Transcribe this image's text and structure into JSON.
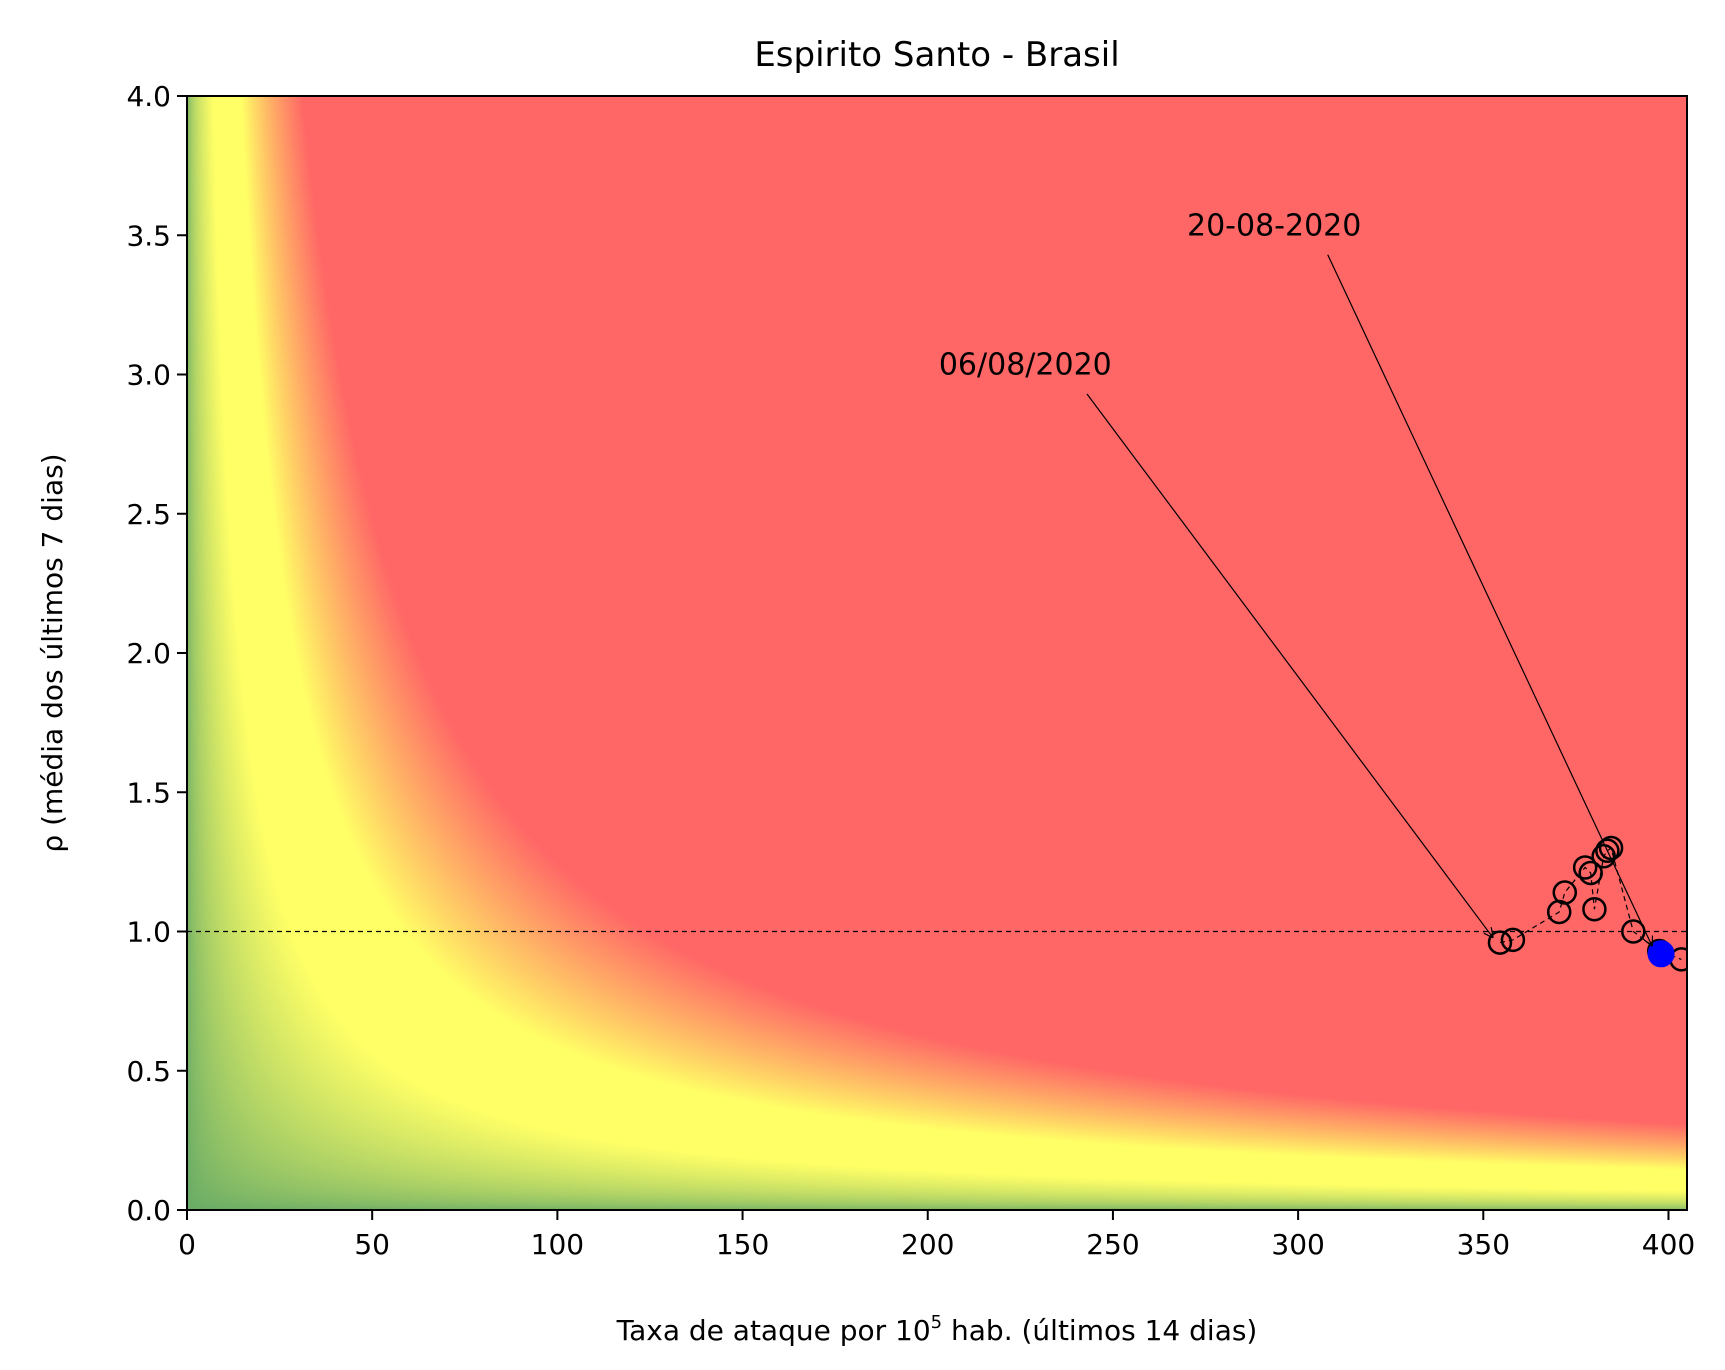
{
  "chart_data": {
    "type": "scatter",
    "title": "Espirito Santo - Brasil",
    "xlabel": {
      "prefix": "Taxa de ataque por 10",
      "sup": "5",
      "suffix": " hab. (últimos 14 dias)"
    },
    "ylabel": "ρ (média dos últimos 7 dias)",
    "xlim": [
      0,
      405
    ],
    "ylim": [
      0,
      4.0
    ],
    "xticks": [
      0,
      50,
      100,
      150,
      200,
      250,
      300,
      350,
      400
    ],
    "yticks": [
      0.0,
      0.5,
      1.0,
      1.5,
      2.0,
      2.5,
      3.0,
      3.5,
      4.0
    ],
    "ytick_labels": [
      "0.0",
      "0.5",
      "1.0",
      "1.5",
      "2.0",
      "2.5",
      "3.0",
      "3.5",
      "4.0"
    ],
    "reference_line": {
      "y": 1.0,
      "style": "dashed",
      "color": "#000000"
    },
    "background": {
      "type": "risk-gradient",
      "colors": {
        "low": "#66aa66",
        "mid": "#ffff66",
        "high": "#ff6666"
      }
    },
    "series": [
      {
        "marker": "open-circle",
        "line": "dashed",
        "color": "#000000",
        "points": [
          {
            "x": 354.5,
            "y": 0.96
          },
          {
            "x": 358.0,
            "y": 0.97
          },
          {
            "x": 370.5,
            "y": 1.07
          },
          {
            "x": 372.0,
            "y": 1.14
          },
          {
            "x": 377.5,
            "y": 1.23
          },
          {
            "x": 379.0,
            "y": 1.21
          },
          {
            "x": 380.0,
            "y": 1.08
          },
          {
            "x": 382.5,
            "y": 1.27
          },
          {
            "x": 383.5,
            "y": 1.29
          },
          {
            "x": 384.5,
            "y": 1.3
          },
          {
            "x": 390.5,
            "y": 1.0
          },
          {
            "x": 397.5,
            "y": 0.93
          },
          {
            "x": 403.5,
            "y": 0.9
          }
        ]
      },
      {
        "marker": "filled-circle",
        "color": "#0000ff",
        "points": [
          {
            "x": 398.0,
            "y": 0.92
          }
        ]
      }
    ],
    "annotations": [
      {
        "text": "06/08/2020",
        "text_x": 203,
        "text_y": 3.0,
        "arrow_from": [
          243,
          2.93
        ],
        "arrow_to": [
          352.5,
          0.98
        ]
      },
      {
        "text": "20-08-2020",
        "text_x": 270,
        "text_y": 3.5,
        "arrow_from": [
          308,
          3.43
        ],
        "arrow_to": [
          395.5,
          0.95
        ]
      }
    ]
  }
}
